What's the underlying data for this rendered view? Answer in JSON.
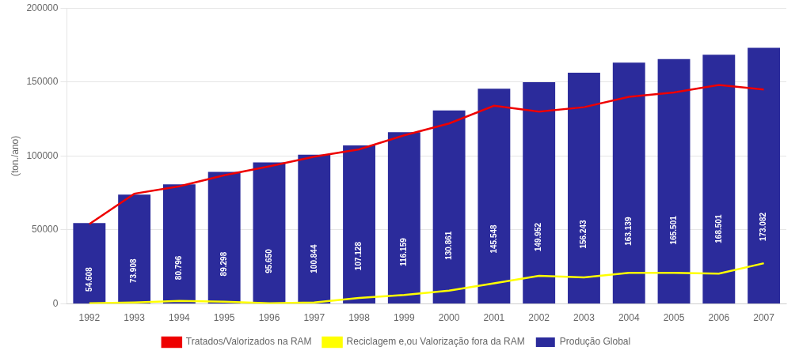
{
  "chart_data": {
    "type": "bar",
    "ylabel": "(ton./ano)",
    "categories": [
      "1992",
      "1993",
      "1994",
      "1995",
      "1996",
      "1997",
      "1998",
      "1999",
      "2000",
      "2001",
      "2002",
      "2003",
      "2004",
      "2005",
      "2006",
      "2007"
    ],
    "series": [
      {
        "name": "Produção Global",
        "type": "bar",
        "color": "#2B2B9B",
        "values": [
          54608,
          73908,
          80796,
          89298,
          95650,
          100844,
          107128,
          116159,
          130861,
          145548,
          149952,
          156243,
          163139,
          165501,
          168501,
          173082
        ],
        "value_labels": [
          "54.608",
          "73.908",
          "80.796",
          "89.298",
          "95.650",
          "100.844",
          "107.128",
          "116.159",
          "130.861",
          "145.548",
          "149.952",
          "156.243",
          "163.139",
          "165.501",
          "168.501",
          "173.082"
        ],
        "data_labels": true
      },
      {
        "name": "Tratados/Valorizados na RAM",
        "type": "line",
        "color": "#EE0000",
        "values": [
          54000,
          74500,
          79500,
          87000,
          93000,
          99500,
          104500,
          114000,
          122000,
          134000,
          130000,
          133000,
          140000,
          143000,
          148000,
          145000
        ]
      },
      {
        "name": "Reciclagem e,ou Valorização fora da RAM",
        "type": "line",
        "color": "#FFFF00",
        "values": [
          500,
          1000,
          2000,
          1500,
          500,
          1000,
          4000,
          6000,
          9000,
          14000,
          19000,
          18000,
          21000,
          21000,
          20500,
          27500
        ]
      }
    ],
    "ylim": [
      0,
      200000
    ],
    "yticks": [
      0,
      50000,
      100000,
      150000,
      200000
    ],
    "grid": true,
    "legend": "bottom"
  }
}
